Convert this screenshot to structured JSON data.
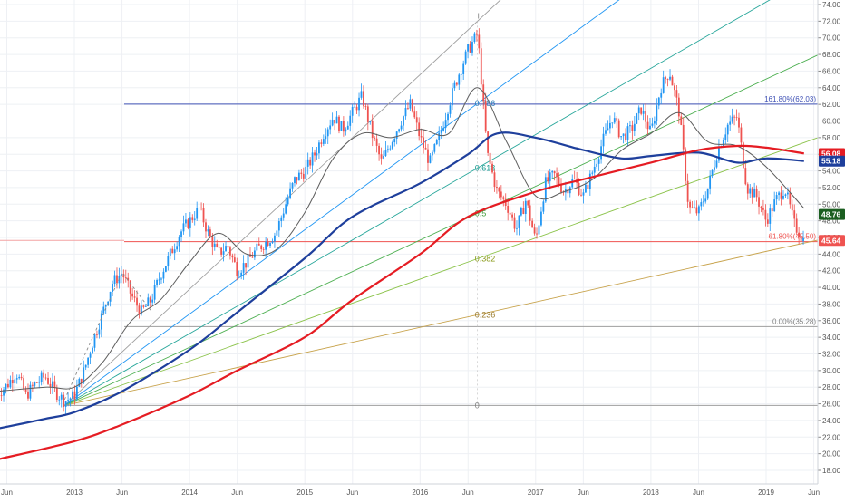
{
  "chart_data": {
    "type": "line",
    "title": "",
    "xlabel": "",
    "ylabel": "",
    "ylim": [
      17.0,
      74.0
    ],
    "grid": true,
    "x_ticks": [
      {
        "label": "Jun",
        "date": "2012-06-01"
      },
      {
        "label": "2013",
        "date": "2013-01-01"
      },
      {
        "label": "Jun",
        "date": "2013-06-01"
      },
      {
        "label": "2014",
        "date": "2014-01-01"
      },
      {
        "label": "Jun",
        "date": "2014-06-01"
      },
      {
        "label": "2015",
        "date": "2015-01-01"
      },
      {
        "label": "Jun",
        "date": "2015-06-01"
      },
      {
        "label": "2016",
        "date": "2016-01-01"
      },
      {
        "label": "Jun",
        "date": "2016-06-01"
      },
      {
        "label": "2017",
        "date": "2017-01-01"
      },
      {
        "label": "Jun",
        "date": "2017-06-01"
      },
      {
        "label": "2018",
        "date": "2018-01-01"
      },
      {
        "label": "Jun",
        "date": "2018-06-01"
      },
      {
        "label": "2019",
        "date": "2019-01-01"
      },
      {
        "label": "Jun",
        "date": "2019-06-01"
      }
    ],
    "y_ticks": [
      "18.00",
      "20.00",
      "22.00",
      "24.00",
      "26.00",
      "28.00",
      "30.00",
      "32.00",
      "34.00",
      "36.00",
      "38.00",
      "40.00",
      "42.00",
      "44.00",
      "46.00",
      "48.00",
      "50.00",
      "52.00",
      "54.00",
      "56.00",
      "58.00",
      "60.00",
      "62.00",
      "64.00",
      "66.00",
      "68.00",
      "70.00",
      "72.00",
      "74.00"
    ],
    "price_path": [
      [
        "2012-05-01",
        27.2
      ],
      [
        "2012-06-01",
        28.2
      ],
      [
        "2012-07-01",
        29.8
      ],
      [
        "2012-08-01",
        27.0
      ],
      [
        "2012-09-01",
        28.5
      ],
      [
        "2012-10-01",
        29.3
      ],
      [
        "2012-11-01",
        27.5
      ],
      [
        "2012-12-01",
        26.3
      ],
      [
        "2013-01-01",
        27.0
      ],
      [
        "2013-02-01",
        30.0
      ],
      [
        "2013-03-01",
        33.5
      ],
      [
        "2013-04-01",
        37.0
      ],
      [
        "2013-05-01",
        40.5
      ],
      [
        "2013-06-01",
        41.8
      ],
      [
        "2013-07-01",
        39.0
      ],
      [
        "2013-08-01",
        37.0
      ],
      [
        "2013-09-01",
        38.5
      ],
      [
        "2013-10-01",
        41.5
      ],
      [
        "2013-11-01",
        44.0
      ],
      [
        "2013-12-01",
        46.5
      ],
      [
        "2014-01-01",
        48.0
      ],
      [
        "2014-02-01",
        49.5
      ],
      [
        "2014-03-01",
        46.5
      ],
      [
        "2014-04-01",
        44.0
      ],
      [
        "2014-05-01",
        45.0
      ],
      [
        "2014-06-01",
        42.0
      ],
      [
        "2014-07-01",
        43.0
      ],
      [
        "2014-08-01",
        44.5
      ],
      [
        "2014-09-01",
        45.5
      ],
      [
        "2014-10-01",
        46.5
      ],
      [
        "2014-11-01",
        50.0
      ],
      [
        "2014-12-01",
        53.0
      ],
      [
        "2015-01-01",
        54.0
      ],
      [
        "2015-02-01",
        56.0
      ],
      [
        "2015-03-01",
        58.5
      ],
      [
        "2015-04-01",
        60.5
      ],
      [
        "2015-05-01",
        59.0
      ],
      [
        "2015-06-01",
        61.0
      ],
      [
        "2015-07-01",
        63.0
      ],
      [
        "2015-08-01",
        58.5
      ],
      [
        "2015-09-01",
        55.0
      ],
      [
        "2015-10-01",
        57.5
      ],
      [
        "2015-11-01",
        60.0
      ],
      [
        "2015-12-01",
        62.0
      ],
      [
        "2016-01-01",
        58.0
      ],
      [
        "2016-02-01",
        55.0
      ],
      [
        "2016-03-01",
        58.0
      ],
      [
        "2016-04-01",
        62.0
      ],
      [
        "2016-05-01",
        65.5
      ],
      [
        "2016-06-01",
        68.5
      ],
      [
        "2016-07-01",
        70.5
      ],
      [
        "2016-08-01",
        56.0
      ],
      [
        "2016-09-01",
        51.5
      ],
      [
        "2016-10-01",
        50.0
      ],
      [
        "2016-11-01",
        47.0
      ],
      [
        "2016-12-01",
        50.5
      ],
      [
        "2017-01-01",
        45.5
      ],
      [
        "2017-02-01",
        52.5
      ],
      [
        "2017-03-01",
        53.5
      ],
      [
        "2017-04-01",
        51.5
      ],
      [
        "2017-05-01",
        53.0
      ],
      [
        "2017-06-01",
        51.0
      ],
      [
        "2017-07-01",
        54.0
      ],
      [
        "2017-08-01",
        57.5
      ],
      [
        "2017-09-01",
        60.5
      ],
      [
        "2017-10-01",
        58.0
      ],
      [
        "2017-11-01",
        59.0
      ],
      [
        "2017-12-01",
        61.5
      ],
      [
        "2018-01-01",
        58.5
      ],
      [
        "2018-02-01",
        64.0
      ],
      [
        "2018-03-01",
        66.0
      ],
      [
        "2018-04-01",
        61.0
      ],
      [
        "2018-05-01",
        49.5
      ],
      [
        "2018-06-01",
        49.0
      ],
      [
        "2018-07-01",
        52.0
      ],
      [
        "2018-08-01",
        56.5
      ],
      [
        "2018-09-01",
        59.5
      ],
      [
        "2018-10-01",
        60.5
      ],
      [
        "2018-11-01",
        52.0
      ],
      [
        "2018-12-01",
        51.0
      ],
      [
        "2019-01-01",
        48.0
      ],
      [
        "2019-02-01",
        50.5
      ],
      [
        "2019-03-01",
        52.0
      ],
      [
        "2019-04-01",
        47.5
      ],
      [
        "2019-05-01",
        45.6
      ]
    ],
    "sma_thin": [
      [
        "2012-05-01",
        27.5
      ],
      [
        "2012-10-01",
        28.0
      ],
      [
        "2013-01-01",
        28.0
      ],
      [
        "2013-04-01",
        31.0
      ],
      [
        "2013-07-01",
        36.0
      ],
      [
        "2013-10-01",
        38.5
      ],
      [
        "2014-01-01",
        43.0
      ],
      [
        "2014-04-01",
        46.5
      ],
      [
        "2014-07-01",
        44.0
      ],
      [
        "2014-10-01",
        44.5
      ],
      [
        "2015-01-01",
        49.0
      ],
      [
        "2015-04-01",
        55.5
      ],
      [
        "2015-07-01",
        58.5
      ],
      [
        "2015-10-01",
        58.0
      ],
      [
        "2016-01-01",
        59.0
      ],
      [
        "2016-04-01",
        58.5
      ],
      [
        "2016-07-01",
        64.0
      ],
      [
        "2016-10-01",
        57.5
      ],
      [
        "2017-01-01",
        51.0
      ],
      [
        "2017-04-01",
        51.5
      ],
      [
        "2017-07-01",
        53.0
      ],
      [
        "2017-10-01",
        56.5
      ],
      [
        "2018-01-01",
        58.5
      ],
      [
        "2018-04-01",
        61.0
      ],
      [
        "2018-07-01",
        57.5
      ],
      [
        "2018-10-01",
        57.0
      ],
      [
        "2019-01-01",
        54.5
      ],
      [
        "2019-05-01",
        49.5
      ]
    ],
    "sma_blue": [
      [
        "2012-05-01",
        23.0
      ],
      [
        "2012-10-01",
        24.2
      ],
      [
        "2013-01-01",
        25.0
      ],
      [
        "2013-06-01",
        27.5
      ],
      [
        "2014-01-01",
        32.5
      ],
      [
        "2014-06-01",
        37.0
      ],
      [
        "2015-01-01",
        43.5
      ],
      [
        "2015-06-01",
        48.5
      ],
      [
        "2016-01-01",
        52.5
      ],
      [
        "2016-06-01",
        56.0
      ],
      [
        "2016-09-01",
        58.5
      ],
      [
        "2017-01-01",
        58.0
      ],
      [
        "2017-06-01",
        56.5
      ],
      [
        "2017-10-01",
        55.5
      ],
      [
        "2018-01-01",
        55.8
      ],
      [
        "2018-06-01",
        56.2
      ],
      [
        "2018-10-01",
        55.0
      ],
      [
        "2019-01-01",
        55.5
      ],
      [
        "2019-05-01",
        55.2
      ]
    ],
    "sma_red": [
      [
        "2012-05-01",
        19.3
      ],
      [
        "2013-01-01",
        21.5
      ],
      [
        "2013-06-01",
        23.5
      ],
      [
        "2014-01-01",
        27.0
      ],
      [
        "2014-06-01",
        30.0
      ],
      [
        "2015-01-01",
        34.0
      ],
      [
        "2015-06-01",
        38.5
      ],
      [
        "2016-01-01",
        44.0
      ],
      [
        "2016-06-01",
        48.5
      ],
      [
        "2017-01-01",
        51.5
      ],
      [
        "2017-06-01",
        53.0
      ],
      [
        "2018-01-01",
        55.0
      ],
      [
        "2018-06-01",
        56.5
      ],
      [
        "2018-10-01",
        57.0
      ],
      [
        "2019-01-01",
        56.8
      ],
      [
        "2019-05-01",
        56.1
      ]
    ],
    "price_labels": [
      {
        "text": "56.08",
        "value": 56.08,
        "color": "#e51c23"
      },
      {
        "text": "55.18",
        "value": 55.18,
        "color": "#1e3f9c"
      },
      {
        "text": "48.76",
        "value": 48.76,
        "color": "#1b5e20"
      },
      {
        "text": "45.64",
        "value": 45.64,
        "color": "#ef5350"
      }
    ],
    "fib_extension": {
      "top_label": "161.80%(62.03)",
      "top_value": 62.03,
      "top_color": "#3f51b5",
      "mid_label": "61.80%(45.50)",
      "mid_value": 45.5,
      "mid_color": "#ef5350",
      "low_label": "0.00%(35.28)",
      "low_value": 35.28,
      "low_color": "#808080"
    },
    "fib_fan": {
      "origin": [
        "2012-12-01",
        25.8
      ],
      "base_value": 25.8,
      "top": [
        "2016-07-01",
        72.0
      ],
      "labels": [
        {
          "text": "0.786",
          "level": 0.786,
          "color": "#2a7ab8"
        },
        {
          "text": "0.618",
          "level": 0.618,
          "color": "#159a8f"
        },
        {
          "text": "0.5",
          "level": 0.5,
          "color": "#3f9a3a"
        },
        {
          "text": "0.382",
          "level": 0.382,
          "color": "#8a9a1a"
        },
        {
          "text": "0.236",
          "level": 0.236,
          "color": "#9a7a2a"
        },
        {
          "text": "0",
          "level": 0,
          "color": "#808080"
        }
      ],
      "top_marker": "I"
    },
    "colors": {
      "up_candle": "#2196f3",
      "down_candle": "#ef5350",
      "sma_thin": "#5d5d5d",
      "sma_blue": "#1e3f9c",
      "sma_red": "#e51c23",
      "grid": "#eef0f4",
      "axis_text": "#555555"
    }
  }
}
